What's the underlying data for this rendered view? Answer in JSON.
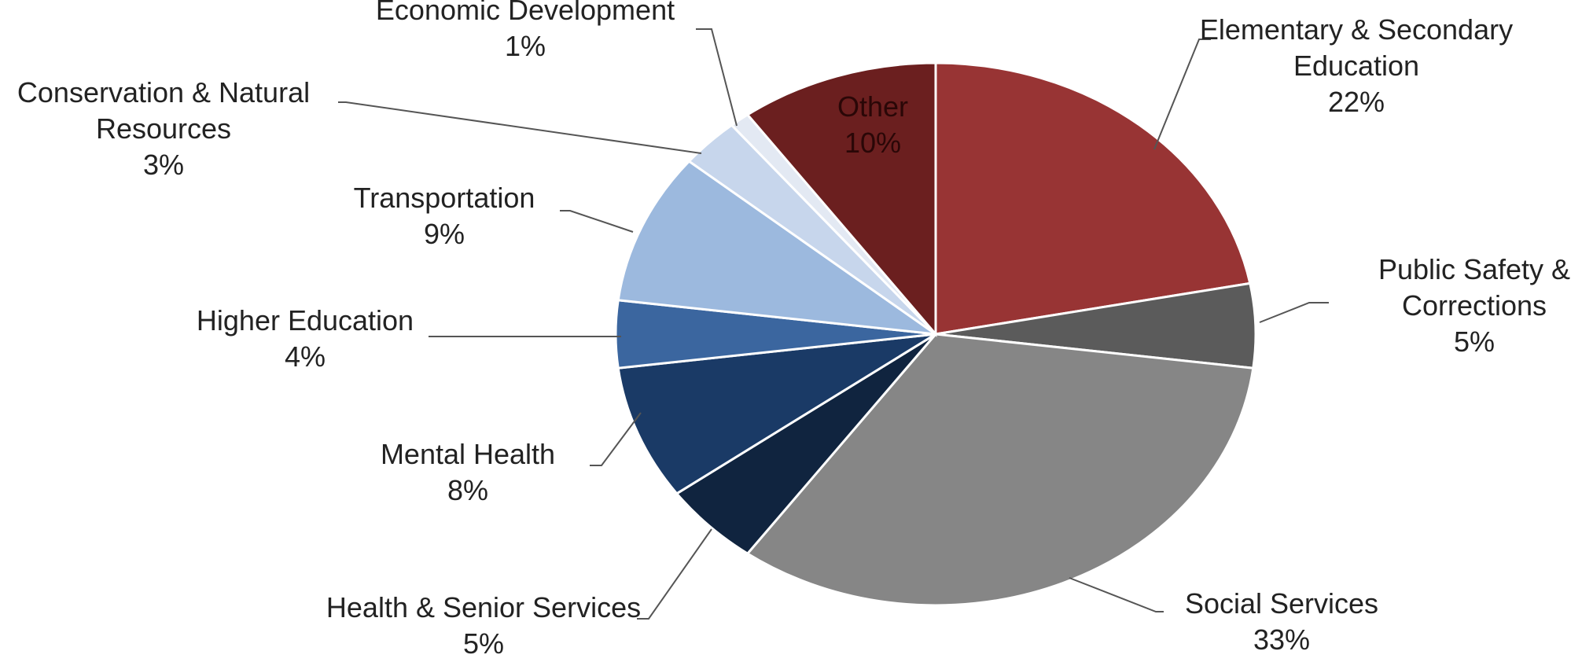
{
  "chart_data": {
    "type": "pie",
    "title": "",
    "slices": [
      {
        "label": "Elementary & Secondary Education",
        "label_lines": [
          "Elementary & Secondary",
          "Education"
        ],
        "value": 22,
        "value_label": "22%",
        "color": "#983434"
      },
      {
        "label": "Public Safety & Corrections",
        "label_lines": [
          "Public Safety &",
          "Corrections"
        ],
        "value": 5,
        "value_label": "5%",
        "color": "#5b5b5b"
      },
      {
        "label": "Social Services",
        "label_lines": [
          "Social Services"
        ],
        "value": 33,
        "value_label": "33%",
        "color": "#868686"
      },
      {
        "label": "Health & Senior Services",
        "label_lines": [
          "Health & Senior Services"
        ],
        "value": 5,
        "value_label": "5%",
        "color": "#10243f"
      },
      {
        "label": "Mental Health",
        "label_lines": [
          "Mental Health"
        ],
        "value": 8,
        "value_label": "8%",
        "color": "#1a3a66"
      },
      {
        "label": "Higher Education",
        "label_lines": [
          "Higher Education"
        ],
        "value": 4,
        "value_label": "4%",
        "color": "#3b669f"
      },
      {
        "label": "Transportation",
        "label_lines": [
          "Transportation"
        ],
        "value": 9,
        "value_label": "9%",
        "color": "#9cb9de"
      },
      {
        "label": "Conservation & Natural Resources",
        "label_lines": [
          "Conservation & Natural",
          "Resources"
        ],
        "value": 3,
        "value_label": "3%",
        "color": "#c7d6ec"
      },
      {
        "label": "Economic Development",
        "label_lines": [
          "Economic Development"
        ],
        "value": 1,
        "value_label": "1%",
        "color": "#e3e9f3"
      },
      {
        "label": "Other",
        "label_lines": [
          "Other"
        ],
        "value": 10,
        "value_label": "10%",
        "color": "#6b1f1f"
      }
    ],
    "start_angle": "12 o'clock",
    "direction": "clockwise",
    "legend": "none",
    "data_labels": "outside with leader lines; Other labeled inside"
  }
}
